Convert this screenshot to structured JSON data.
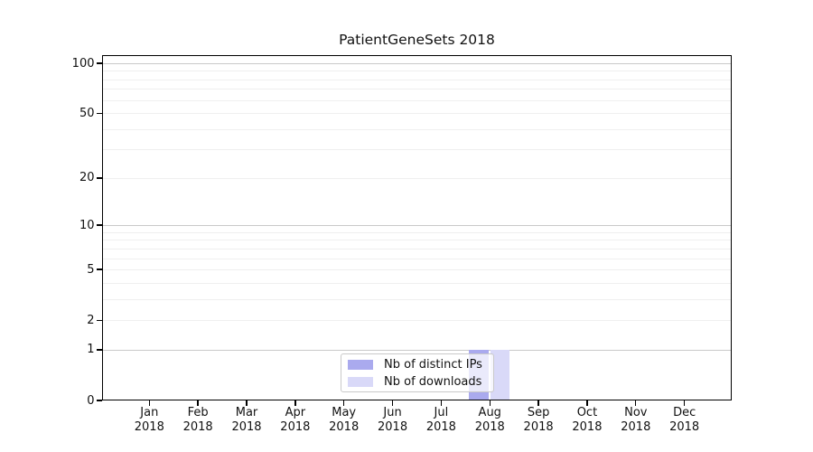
{
  "chart_data": {
    "type": "bar",
    "title": "PatientGeneSets 2018",
    "categories": [
      [
        "Jan",
        "2018"
      ],
      [
        "Feb",
        "2018"
      ],
      [
        "Mar",
        "2018"
      ],
      [
        "Apr",
        "2018"
      ],
      [
        "May",
        "2018"
      ],
      [
        "Jun",
        "2018"
      ],
      [
        "Jul",
        "2018"
      ],
      [
        "Aug",
        "2018"
      ],
      [
        "Sep",
        "2018"
      ],
      [
        "Oct",
        "2018"
      ],
      [
        "Nov",
        "2018"
      ],
      [
        "Dec",
        "2018"
      ]
    ],
    "series": [
      {
        "name": "Nb of distinct IPs",
        "color": "#aaaaee",
        "values": [
          0,
          0,
          0,
          0,
          0,
          0,
          0,
          1,
          0,
          0,
          0,
          0
        ]
      },
      {
        "name": "Nb of downloads",
        "color": "#d9d9f8",
        "values": [
          0,
          0,
          0,
          0,
          0,
          0,
          0,
          1,
          0,
          0,
          0,
          0
        ]
      }
    ],
    "xlabel": "",
    "ylabel": "",
    "yscale": "log1p",
    "ylim": [
      0,
      100
    ],
    "y_ticks": [
      0,
      1,
      2,
      5,
      10,
      20,
      50,
      100
    ],
    "y_minor_ticks": [
      3,
      4,
      6,
      7,
      8,
      9,
      30,
      40,
      60,
      70,
      80,
      90
    ],
    "grid": "horizontal",
    "grid_major_at": [
      1,
      10,
      100
    ],
    "legend_position": "lower center",
    "colors": {
      "grid_major": "#c9c9c9",
      "grid_minor": "#efefef",
      "axis": "#000000",
      "text": "#111111",
      "background": "#ffffff"
    }
  }
}
